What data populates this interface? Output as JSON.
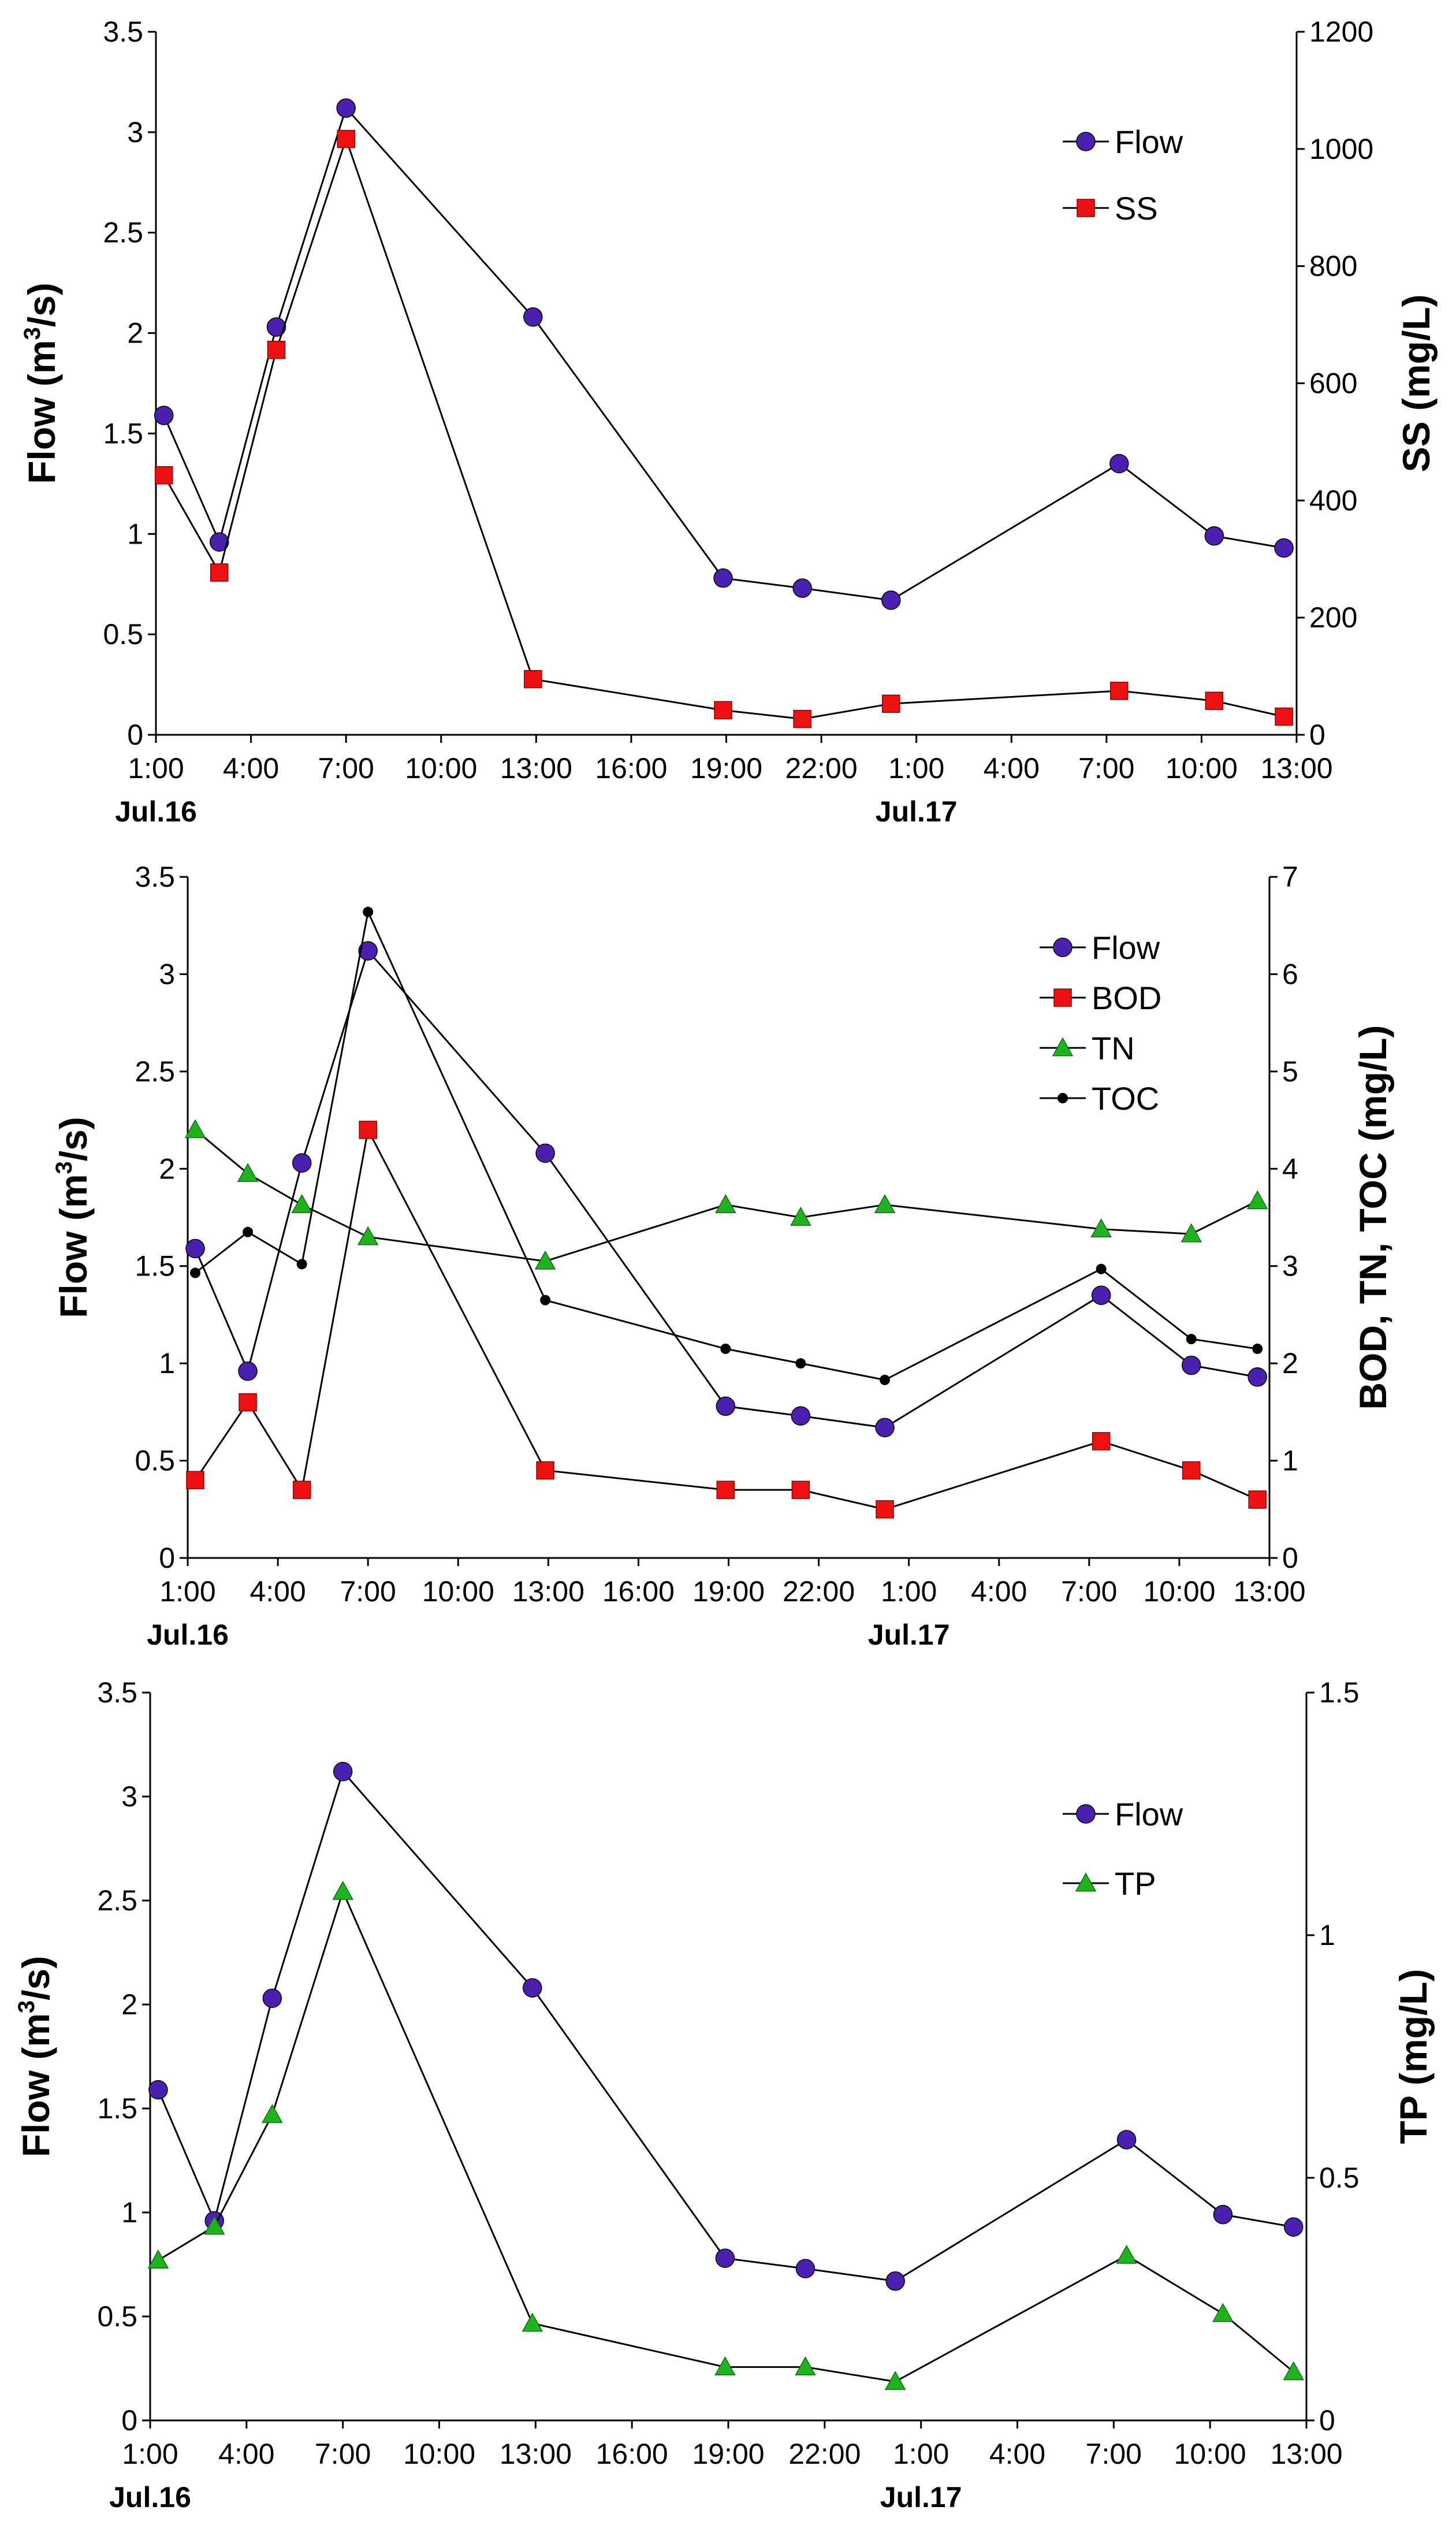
{
  "colors": {
    "flow": "#4b1fb0",
    "ss": "#ee1111",
    "bod": "#ee1111",
    "tn": "#1fb31f",
    "toc": "#000000",
    "tp": "#1fb31f",
    "line": "#000000"
  },
  "chart_data": [
    {
      "type": "line",
      "title": "",
      "xlabel": "",
      "x_tick_labels": [
        "1:00",
        "4:00",
        "7:00",
        "10:00",
        "13:00",
        "16:00",
        "19:00",
        "22:00",
        "1:00",
        "4:00",
        "7:00",
        "10:00",
        "13:00"
      ],
      "date_labels": [
        "Jul.16",
        "Jul.17"
      ],
      "x_hours_range": [
        0,
        36
      ],
      "ylabel_left": "Flow (m",
      "ylabel_left_sup": "3",
      "ylabel_left_end": "/s)",
      "ylabel_right": "SS (mg/L)",
      "ylim_left": [
        0,
        3.5
      ],
      "ylim_right": [
        0,
        1200
      ],
      "yticks_left": [
        "0",
        "0.5",
        "1",
        "1.5",
        "2",
        "2.5",
        "3",
        "3.5"
      ],
      "yticks_right": [
        "0",
        "200",
        "400",
        "600",
        "800",
        "1000",
        "1200"
      ],
      "legend": [
        "Flow",
        "SS"
      ],
      "series": [
        {
          "name": "Flow",
          "axis": "left",
          "marker": "circle",
          "color_key": "flow",
          "x": [
            0.25,
            2.0,
            3.8,
            6.0,
            11.9,
            17.9,
            20.4,
            23.2,
            30.4,
            33.4,
            35.6
          ],
          "values": [
            1.59,
            0.96,
            2.03,
            3.12,
            2.08,
            0.78,
            0.73,
            0.67,
            1.35,
            0.99,
            0.93
          ]
        },
        {
          "name": "SS",
          "axis": "right",
          "marker": "square",
          "color_key": "ss",
          "x": [
            0.25,
            2.0,
            3.8,
            6.0,
            11.9,
            17.9,
            20.4,
            23.2,
            30.4,
            33.4,
            35.6
          ],
          "values": [
            443,
            277,
            657,
            1017,
            95,
            42,
            27,
            53,
            75,
            58,
            31
          ]
        }
      ]
    },
    {
      "type": "line",
      "title": "",
      "xlabel": "",
      "x_tick_labels": [
        "1:00",
        "4:00",
        "7:00",
        "10:00",
        "13:00",
        "16:00",
        "19:00",
        "22:00",
        "1:00",
        "4:00",
        "7:00",
        "10:00",
        "13:00"
      ],
      "date_labels": [
        "Jul.16",
        "Jul.17"
      ],
      "x_hours_range": [
        0,
        36
      ],
      "ylabel_left": "Flow (m",
      "ylabel_left_sup": "3",
      "ylabel_left_end": "/s)",
      "ylabel_right": "BOD, TN, TOC (mg/L)",
      "ylim_left": [
        0,
        3.5
      ],
      "ylim_right": [
        0,
        7
      ],
      "yticks_left": [
        "0",
        "0.5",
        "1",
        "1.5",
        "2",
        "2.5",
        "3",
        "3.5"
      ],
      "yticks_right": [
        "0",
        "1",
        "2",
        "3",
        "4",
        "5",
        "6",
        "7"
      ],
      "legend": [
        "Flow",
        "BOD",
        "TN",
        "TOC"
      ],
      "series": [
        {
          "name": "Flow",
          "axis": "left",
          "marker": "circle",
          "color_key": "flow",
          "x": [
            0.25,
            2.0,
            3.8,
            6.0,
            11.9,
            17.9,
            20.4,
            23.2,
            30.4,
            33.4,
            35.6
          ],
          "values": [
            1.59,
            0.96,
            2.03,
            3.12,
            2.08,
            0.78,
            0.73,
            0.67,
            1.35,
            0.99,
            0.93
          ]
        },
        {
          "name": "BOD",
          "axis": "right",
          "marker": "square",
          "color_key": "bod",
          "x": [
            0.25,
            2.0,
            3.8,
            6.0,
            11.9,
            17.9,
            20.4,
            23.2,
            30.4,
            33.4,
            35.6
          ],
          "values": [
            0.8,
            1.6,
            0.7,
            4.4,
            0.9,
            0.7,
            0.7,
            0.5,
            1.2,
            0.9,
            0.6
          ]
        },
        {
          "name": "TN",
          "axis": "right",
          "marker": "triangle",
          "color_key": "tn",
          "x": [
            0.25,
            2.0,
            3.8,
            6.0,
            11.9,
            17.9,
            20.4,
            23.2,
            30.4,
            33.4,
            35.6
          ],
          "values": [
            4.4,
            3.95,
            3.63,
            3.3,
            3.05,
            3.63,
            3.5,
            3.63,
            3.38,
            3.33,
            3.67
          ]
        },
        {
          "name": "TOC",
          "axis": "right",
          "marker": "dot",
          "color_key": "toc",
          "x": [
            0.25,
            2.0,
            3.8,
            6.0,
            11.9,
            17.9,
            20.4,
            23.2,
            30.4,
            33.4,
            35.6
          ],
          "values": [
            2.93,
            3.35,
            3.02,
            6.64,
            2.65,
            2.15,
            2.0,
            1.83,
            2.97,
            2.25,
            2.15
          ]
        }
      ]
    },
    {
      "type": "line",
      "title": "",
      "xlabel": "",
      "x_tick_labels": [
        "1:00",
        "4:00",
        "7:00",
        "10:00",
        "13:00",
        "16:00",
        "19:00",
        "22:00",
        "1:00",
        "4:00",
        "7:00",
        "10:00",
        "13:00"
      ],
      "date_labels": [
        "Jul.16",
        "Jul.17"
      ],
      "x_hours_range": [
        0,
        36
      ],
      "ylabel_left": "Flow (m",
      "ylabel_left_sup": "3",
      "ylabel_left_end": "/s)",
      "ylabel_right": "TP (mg/L)",
      "ylim_left": [
        0,
        3.5
      ],
      "ylim_right": [
        0,
        1.5
      ],
      "yticks_left": [
        "0",
        "0.5",
        "1",
        "1.5",
        "2",
        "2.5",
        "3",
        "3.5"
      ],
      "yticks_right": [
        "0",
        "0.5",
        "1",
        "1.5"
      ],
      "legend": [
        "Flow",
        "TP"
      ],
      "series": [
        {
          "name": "Flow",
          "axis": "left",
          "marker": "circle",
          "color_key": "flow",
          "x": [
            0.25,
            2.0,
            3.8,
            6.0,
            11.9,
            17.9,
            20.4,
            23.2,
            30.4,
            33.4,
            35.6
          ],
          "values": [
            1.59,
            0.96,
            2.03,
            3.12,
            2.08,
            0.78,
            0.73,
            0.67,
            1.35,
            0.99,
            0.93
          ]
        },
        {
          "name": "TP",
          "axis": "right",
          "marker": "triangle",
          "color_key": "tp",
          "x": [
            0.25,
            2.0,
            3.8,
            6.0,
            11.9,
            17.9,
            20.4,
            23.2,
            30.4,
            33.4,
            35.6
          ],
          "values": [
            0.33,
            0.4,
            0.63,
            1.09,
            0.2,
            0.11,
            0.11,
            0.08,
            0.34,
            0.22,
            0.1
          ]
        }
      ]
    }
  ]
}
